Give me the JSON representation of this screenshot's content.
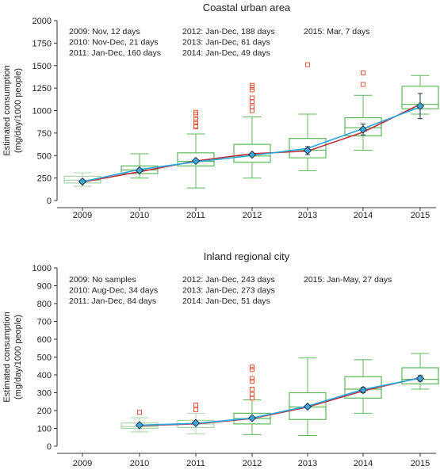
{
  "chart_data": [
    {
      "type": "box",
      "title": "Coastal urban area",
      "ylabel": [
        "Estimated consumption",
        "(mg/day/1000 people)"
      ],
      "ylim": [
        0,
        2000
      ],
      "yticks": [
        0,
        250,
        500,
        750,
        1000,
        1250,
        1500,
        1750,
        2000
      ],
      "categories": [
        "2009",
        "2010",
        "2011",
        "2012",
        "2013",
        "2014",
        "2015"
      ],
      "annotations": [
        [
          "2009: Nov, 12 days",
          "2010: Nov-Dec, 21 days",
          "2011: Jan-Dec, 160 days"
        ],
        [
          "2012: Jan-Dec, 188 days",
          "2013: Jan-Dec, 61 days",
          "2014: Jan-Dec, 49 days"
        ],
        [
          "2015: Mar, 7 days"
        ]
      ],
      "boxes": [
        {
          "year": "2009",
          "whisker_low": 160,
          "q1": 195,
          "median": 225,
          "q3": 270,
          "whisker_high": 310,
          "outliers": []
        },
        {
          "year": "2010",
          "whisker_low": 250,
          "q1": 300,
          "median": 340,
          "q3": 385,
          "whisker_high": 520,
          "outliers": []
        },
        {
          "year": "2011",
          "whisker_low": 140,
          "q1": 385,
          "median": 435,
          "q3": 530,
          "whisker_high": 740,
          "outliers": [
            820,
            830,
            870,
            900,
            960,
            980
          ]
        },
        {
          "year": "2012",
          "whisker_low": 250,
          "q1": 425,
          "median": 495,
          "q3": 625,
          "whisker_high": 930,
          "outliers": [
            1000,
            1040,
            1100,
            1140,
            1230,
            1260,
            1280
          ]
        },
        {
          "year": "2013",
          "whisker_low": 330,
          "q1": 475,
          "median": 560,
          "q3": 690,
          "whisker_high": 960,
          "outliers": [
            1510
          ]
        },
        {
          "year": "2014",
          "whisker_low": 560,
          "q1": 720,
          "median": 810,
          "q3": 920,
          "whisker_high": 1170,
          "outliers": [
            1290,
            1420
          ]
        },
        {
          "year": "2015",
          "whisker_low": 960,
          "q1": 1020,
          "median": 1070,
          "q3": 1270,
          "whisker_high": 1390,
          "outliers": []
        }
      ],
      "means": [
        {
          "year": "2009",
          "value": 210,
          "ci": [
            200,
            220
          ]
        },
        {
          "year": "2010",
          "value": 335,
          "ci": [
            320,
            350
          ]
        },
        {
          "year": "2011",
          "value": 440,
          "ci": [
            425,
            455
          ]
        },
        {
          "year": "2012",
          "value": 510,
          "ci": [
            495,
            525
          ]
        },
        {
          "year": "2013",
          "value": 555,
          "ci": [
            510,
            600
          ]
        },
        {
          "year": "2014",
          "value": 790,
          "ci": [
            730,
            850
          ]
        },
        {
          "year": "2015",
          "value": 1050,
          "ci": [
            910,
            1190
          ]
        }
      ],
      "trend_blue": [
        210,
        345,
        430,
        500,
        580,
        800,
        1040
      ],
      "trend_red": [
        205,
        320,
        440,
        520,
        550,
        760,
        1070
      ]
    },
    {
      "type": "box",
      "title": "Inland regional city",
      "ylabel": [
        "Estimated consumption",
        "(mg/day/1000 people)"
      ],
      "ylim": [
        0,
        1000
      ],
      "yticks": [
        0,
        100,
        200,
        300,
        400,
        500,
        600,
        700,
        800,
        900,
        1000
      ],
      "categories": [
        "2009",
        "2010",
        "2011",
        "2012",
        "2013",
        "2014",
        "2015"
      ],
      "annotations": [
        [
          "2009: No samples",
          "2010: Aug-Dec, 34 days",
          "2011: Jan-Dec, 84 days"
        ],
        [
          "2012: Jan-Dec, 243 days",
          "2013: Jan-Dec, 273 days",
          "2014: Jan-Dec, 51 days"
        ],
        [
          "2015: Jan-May, 27 days"
        ]
      ],
      "boxes": [
        {
          "year": "2010",
          "whisker_low": 80,
          "q1": 100,
          "median": 110,
          "q3": 130,
          "whisker_high": 160,
          "outliers": [
            190
          ]
        },
        {
          "year": "2011",
          "whisker_low": 70,
          "q1": 105,
          "median": 125,
          "q3": 145,
          "whisker_high": 185,
          "outliers": [
            205,
            230
          ]
        },
        {
          "year": "2012",
          "whisker_low": 65,
          "q1": 125,
          "median": 155,
          "q3": 185,
          "whisker_high": 260,
          "outliers": [
            270,
            290,
            320,
            365,
            380,
            430,
            445
          ]
        },
        {
          "year": "2013",
          "whisker_low": 60,
          "q1": 150,
          "median": 220,
          "q3": 300,
          "whisker_high": 495,
          "outliers": []
        },
        {
          "year": "2014",
          "whisker_low": 185,
          "q1": 270,
          "median": 320,
          "q3": 390,
          "whisker_high": 485,
          "outliers": []
        },
        {
          "year": "2015",
          "whisker_low": 320,
          "q1": 350,
          "median": 375,
          "q3": 440,
          "whisker_high": 520,
          "outliers": []
        }
      ],
      "means": [
        {
          "year": "2010",
          "value": 118,
          "ci": [
            112,
            124
          ]
        },
        {
          "year": "2011",
          "value": 130,
          "ci": [
            122,
            138
          ]
        },
        {
          "year": "2012",
          "value": 158,
          "ci": [
            150,
            166
          ]
        },
        {
          "year": "2013",
          "value": 222,
          "ci": [
            214,
            230
          ]
        },
        {
          "year": "2014",
          "value": 315,
          "ci": [
            300,
            330
          ]
        },
        {
          "year": "2015",
          "value": 380,
          "ci": [
            364,
            396
          ]
        }
      ],
      "trend_blue_x": [
        "2010",
        "2011",
        "2012",
        "2013",
        "2014",
        "2015"
      ],
      "trend_blue": [
        118,
        128,
        158,
        225,
        318,
        382
      ],
      "trend_red": [
        115,
        125,
        155,
        220,
        310,
        385
      ]
    }
  ],
  "colors": {
    "box": "#5cb85c",
    "box_faint": "#a8d5a8",
    "outlier": "#e8553e",
    "mean_fill": "#3fa7d6",
    "mean_stroke": "#1f3550",
    "trend_blue": "#29a8e0",
    "trend_red": "#c0303a",
    "axis": "#333333"
  }
}
